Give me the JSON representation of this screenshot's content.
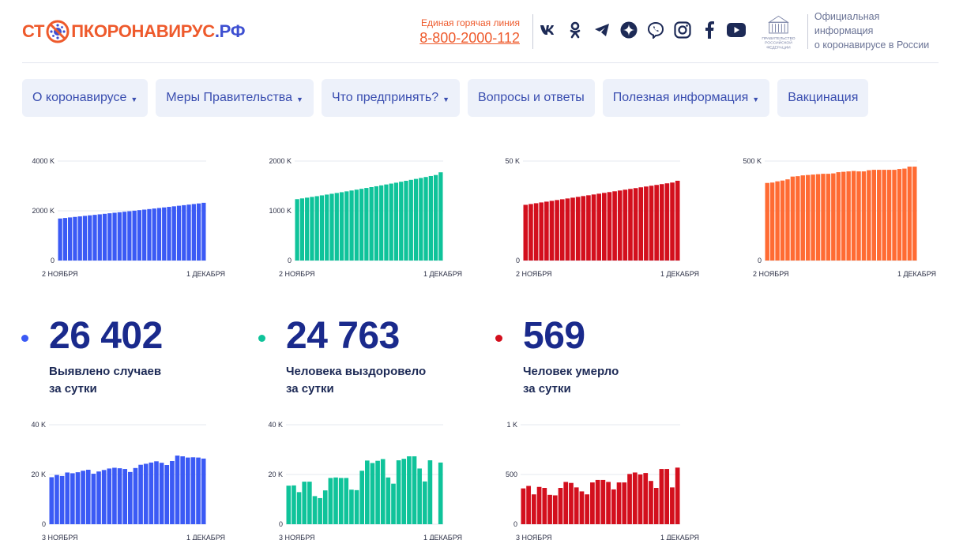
{
  "header": {
    "logo": {
      "part1": "СТ",
      "part2": "ПКОРОНАВИРУС",
      "part3": ".РФ"
    },
    "hotline_label": "Единая горячая линия",
    "hotline_number": "8-800-2000-112",
    "socials": [
      "vk-icon",
      "odnoklassniki-icon",
      "telegram-icon",
      "yandex-zen-icon",
      "viber-icon",
      "instagram-icon",
      "facebook-icon",
      "youtube-icon"
    ],
    "gov_emblem_text": "ПРАВИТЕЛЬСТВО РОССИЙСКОЙ ФЕДЕРАЦИИ",
    "gov_text_line1": "Официальная информация",
    "gov_text_line2": "о коронавирусе в России"
  },
  "nav": [
    {
      "label": "О коронавирусе",
      "dropdown": true
    },
    {
      "label": "Меры Правительства",
      "dropdown": true
    },
    {
      "label": "Что предпринять?",
      "dropdown": true
    },
    {
      "label": "Вопросы и ответы",
      "dropdown": false
    },
    {
      "label": "Полезная информация",
      "dropdown": true
    },
    {
      "label": "Вакцинация",
      "dropdown": false
    }
  ],
  "stats": [
    {
      "value": "26 402",
      "line1": "Выявлено случаев",
      "line2": "за сутки",
      "color": "#3b5af5"
    },
    {
      "value": "24 763",
      "line1": "Человека выздоровело",
      "line2": "за сутки",
      "color": "#0fc39a"
    },
    {
      "value": "569",
      "line1": "Человек умерло",
      "line2": "за сутки",
      "color": "#d30f1d"
    }
  ],
  "chart_data": [
    {
      "type": "bar",
      "color": "#3b5af5",
      "x_start": "2 НОЯБРЯ",
      "x_end": "1 ДЕКАБРЯ",
      "ylim": [
        0,
        4000
      ],
      "yticks": [
        "0",
        "2000 K",
        "4000 K"
      ],
      "values": [
        1690,
        1711,
        1733,
        1754,
        1775,
        1796,
        1817,
        1837,
        1858,
        1879,
        1900,
        1921,
        1941,
        1962,
        1983,
        2004,
        2026,
        2047,
        2069,
        2091,
        2113,
        2135,
        2157,
        2180,
        2203,
        2226,
        2249,
        2272,
        2295,
        2322
      ]
    },
    {
      "type": "bar",
      "color": "#0fc39a",
      "x_start": "2 НОЯБРЯ",
      "x_end": "1 ДЕКАБРЯ",
      "ylim": [
        0,
        2000
      ],
      "yticks": [
        "0",
        "1000 K",
        "2000 K"
      ],
      "values": [
        1234,
        1249,
        1264,
        1279,
        1294,
        1310,
        1326,
        1342,
        1358,
        1374,
        1391,
        1408,
        1425,
        1442,
        1459,
        1476,
        1493,
        1511,
        1529,
        1547,
        1565,
        1584,
        1603,
        1622,
        1641,
        1660,
        1679,
        1699,
        1719,
        1774
      ]
    },
    {
      "type": "bar",
      "color": "#d30f1d",
      "x_start": "2 НОЯБРЯ",
      "x_end": "1 ДЕКАБРЯ",
      "ylim": [
        0,
        50
      ],
      "yticks": [
        "0",
        "",
        "50 K"
      ],
      "values": [
        28.0,
        28.4,
        28.8,
        29.2,
        29.6,
        30.0,
        30.4,
        30.8,
        31.2,
        31.6,
        32.0,
        32.4,
        32.8,
        33.2,
        33.6,
        34.0,
        34.4,
        34.8,
        35.2,
        35.6,
        36.0,
        36.4,
        36.8,
        37.2,
        37.6,
        38.0,
        38.4,
        38.8,
        39.2,
        40.1
      ]
    },
    {
      "type": "bar",
      "color": "#ff6b33",
      "x_start": "2 НОЯБРЯ",
      "x_end": "1 ДЕКАБРЯ",
      "ylim": [
        0,
        500
      ],
      "yticks": [
        "0",
        "",
        "500 K"
      ],
      "values": [
        390,
        392,
        398,
        402,
        408,
        422,
        424,
        428,
        430,
        432,
        434,
        436,
        436,
        438,
        444,
        446,
        448,
        450,
        448,
        448,
        454,
        456,
        456,
        456,
        456,
        456,
        460,
        462,
        472,
        472
      ]
    },
    {
      "type": "bar",
      "color": "#3b5af5",
      "x_start": "3 НОЯБРЯ",
      "x_end": "1 ДЕКАБРЯ",
      "ylim": [
        0,
        40000
      ],
      "yticks": [
        "0",
        "20 K",
        "40 K"
      ],
      "values": [
        18900,
        19800,
        19400,
        20800,
        20500,
        20900,
        21500,
        21900,
        20300,
        21200,
        21800,
        22400,
        22700,
        22500,
        22200,
        21000,
        22600,
        23900,
        24300,
        24800,
        25300,
        24700,
        23800,
        25400,
        27600,
        27300,
        26800,
        26900,
        26800,
        26400
      ]
    },
    {
      "type": "bar",
      "color": "#0fc39a",
      "x_start": "3 НОЯБРЯ",
      "x_end": "1 ДЕКАБРЯ",
      "ylim": [
        0,
        40000
      ],
      "yticks": [
        "0",
        "20 K",
        "40 K"
      ],
      "values": [
        15500,
        15600,
        12900,
        17100,
        17100,
        11300,
        10500,
        13600,
        18600,
        18800,
        18600,
        18600,
        13900,
        13700,
        21500,
        25600,
        24600,
        25500,
        26200,
        18800,
        16300,
        25700,
        26300,
        27300,
        27300,
        22400,
        17200,
        25700,
        null,
        24800
      ]
    },
    {
      "type": "bar",
      "color": "#d30f1d",
      "x_start": "3 НОЯБРЯ",
      "x_end": "1 ДЕКАБРЯ",
      "ylim": [
        0,
        1000
      ],
      "yticks": [
        "0",
        "500",
        "1 K"
      ],
      "values": [
        360,
        385,
        300,
        375,
        365,
        295,
        290,
        365,
        425,
        415,
        370,
        330,
        300,
        420,
        445,
        445,
        425,
        350,
        420,
        420,
        505,
        520,
        500,
        515,
        435,
        365,
        555,
        555,
        370,
        569
      ]
    }
  ]
}
